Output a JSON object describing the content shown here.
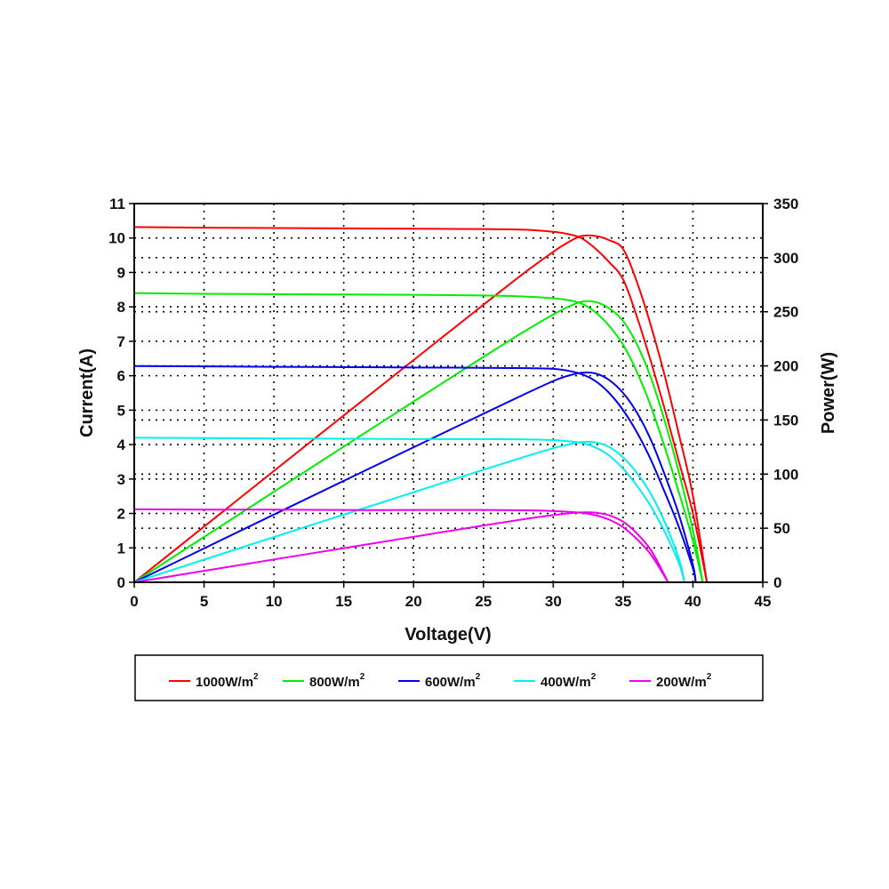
{
  "chart_data": {
    "type": "line",
    "xlabel": "Voltage(V)",
    "ylabel": "Current(A)",
    "y2label": "Power(W)",
    "xlim": [
      0,
      45
    ],
    "ylim": [
      0,
      11
    ],
    "y2lim": [
      0,
      350
    ],
    "xticks": [
      "0",
      "5",
      "10",
      "15",
      "20",
      "25",
      "30",
      "35",
      "40",
      "45"
    ],
    "yticks": [
      "0",
      "1",
      "2",
      "3",
      "4",
      "5",
      "6",
      "7",
      "8",
      "9",
      "10",
      "11"
    ],
    "y2ticks": [
      "0",
      "50",
      "100",
      "150",
      "200",
      "250",
      "300",
      "350"
    ],
    "grid": true,
    "legend_position": "bottom",
    "series": [
      {
        "name": "1000W/m",
        "sup": "2",
        "color": "#ff0000",
        "voltage": [
          0,
          5,
          10,
          15,
          20,
          25,
          28,
          30,
          31,
          32,
          33,
          34,
          35,
          36,
          37,
          38,
          39,
          40,
          41
        ],
        "current": [
          10.32,
          10.3,
          10.29,
          10.28,
          10.27,
          10.26,
          10.24,
          10.18,
          10.12,
          10.0,
          9.7,
          9.3,
          8.8,
          7.7,
          6.4,
          5.0,
          3.5,
          2.0,
          0
        ]
      },
      {
        "name": "800W/m",
        "sup": "2",
        "color": "#00ee00",
        "voltage": [
          0,
          5,
          10,
          15,
          20,
          25,
          28,
          30,
          31,
          32,
          33,
          34,
          35,
          36,
          37,
          38,
          39,
          40,
          40.7
        ],
        "current": [
          8.4,
          8.38,
          8.37,
          8.36,
          8.35,
          8.33,
          8.3,
          8.25,
          8.2,
          8.1,
          7.85,
          7.45,
          6.9,
          6.1,
          5.1,
          3.9,
          2.6,
          1.2,
          0
        ]
      },
      {
        "name": "600W/m",
        "sup": "2",
        "color": "#0000ee",
        "voltage": [
          0,
          5,
          10,
          15,
          20,
          25,
          28,
          30,
          31,
          32,
          33,
          34,
          35,
          36,
          37,
          38,
          39,
          40,
          40.2
        ],
        "current": [
          6.28,
          6.27,
          6.26,
          6.25,
          6.24,
          6.23,
          6.22,
          6.2,
          6.15,
          6.05,
          5.85,
          5.5,
          5.0,
          4.35,
          3.55,
          2.6,
          1.6,
          0.4,
          0
        ]
      },
      {
        "name": "400W/m",
        "sup": "2",
        "color": "#00f0f0",
        "voltage": [
          0,
          5,
          10,
          15,
          20,
          25,
          28,
          30,
          31,
          32,
          33,
          34,
          35,
          36,
          37,
          38,
          39,
          39.4
        ],
        "current": [
          4.2,
          4.19,
          4.18,
          4.17,
          4.16,
          4.16,
          4.15,
          4.13,
          4.1,
          4.05,
          3.92,
          3.68,
          3.3,
          2.8,
          2.2,
          1.45,
          0.55,
          0
        ]
      },
      {
        "name": "200W/m",
        "sup": "2",
        "color": "#ee00ee",
        "voltage": [
          0,
          5,
          10,
          15,
          20,
          25,
          28,
          30,
          31,
          32,
          33,
          34,
          35,
          36,
          37,
          38,
          38.2
        ],
        "current": [
          2.12,
          2.11,
          2.11,
          2.1,
          2.1,
          2.1,
          2.09,
          2.07,
          2.05,
          2.02,
          1.95,
          1.82,
          1.6,
          1.25,
          0.8,
          0.15,
          0
        ]
      }
    ]
  }
}
